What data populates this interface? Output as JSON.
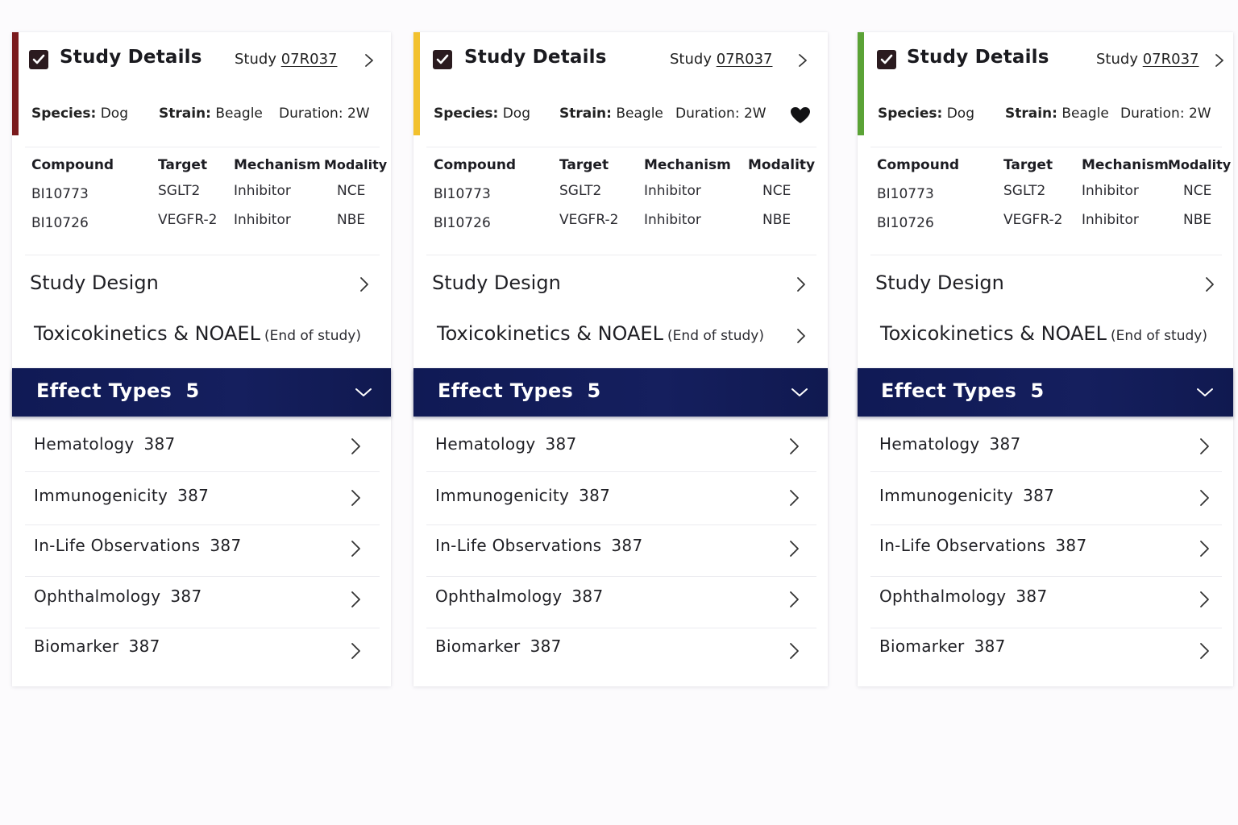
{
  "colors": {
    "accent_card_1": "#7a1a1d",
    "accent_card_2": "#f2c12e",
    "accent_card_3": "#5ba336",
    "effect_header": "#121c58",
    "checkbox": "#2b1b1f"
  },
  "icons": {
    "checkbox": "checked-checkbox-icon",
    "chevron": "chevron-right-icon",
    "collapse": "chevron-down-icon",
    "favorite": "heart-icon"
  },
  "cards": [
    {
      "study_details": {
        "title": "Study Details",
        "study_prefix": "Study",
        "study_id": "07R037",
        "species_label": "Species:",
        "species_value": "Dog",
        "strain_label": "Strain:",
        "strain_value": "Beagle",
        "duration_label": "Duration:",
        "duration_value": "2W"
      },
      "compound_table": {
        "headers": [
          "Compound",
          "Target",
          "Mechanism",
          "Modality"
        ],
        "rows": [
          [
            "BI10773",
            "SGLT2",
            "Inhibitor",
            "NCE"
          ],
          [
            "BI10726",
            "VEGFR-2",
            "Inhibitor",
            "NBE"
          ]
        ]
      },
      "study_design": "Study Design",
      "tox": {
        "title": "Toxicokinetics & NOAEL",
        "subtitle": "(End of study)"
      },
      "effect_types": {
        "title": "Effect Types",
        "count": "5",
        "items": [
          {
            "label": "Hematology",
            "count": "387"
          },
          {
            "label": "Immunogenicity",
            "count": "387"
          },
          {
            "label": "In-Life Observations",
            "count": "387"
          },
          {
            "label": "Ophthalmology",
            "count": "387"
          },
          {
            "label": "Biomarker",
            "count": "387"
          }
        ]
      }
    },
    {
      "study_details": {
        "title": "Study Details",
        "study_prefix": "Study",
        "study_id": "07R037",
        "species_label": "Species:",
        "species_value": "Dog",
        "strain_label": "Strain:",
        "strain_value": "Beagle",
        "duration_label": "Duration:",
        "duration_value": "2W"
      },
      "compound_table": {
        "headers": [
          "Compound",
          "Target",
          "Mechanism",
          "Modality"
        ],
        "rows": [
          [
            "BI10773",
            "SGLT2",
            "Inhibitor",
            "NCE"
          ],
          [
            "BI10726",
            "VEGFR-2",
            "Inhibitor",
            "NBE"
          ]
        ]
      },
      "study_design": "Study Design",
      "tox": {
        "title": "Toxicokinetics & NOAEL",
        "subtitle": "(End of study)"
      },
      "effect_types": {
        "title": "Effect Types",
        "count": "5",
        "items": [
          {
            "label": "Hematology",
            "count": "387"
          },
          {
            "label": "Immunogenicity",
            "count": "387"
          },
          {
            "label": "In-Life Observations",
            "count": "387"
          },
          {
            "label": "Ophthalmology",
            "count": "387"
          },
          {
            "label": "Biomarker",
            "count": "387"
          }
        ]
      }
    },
    {
      "study_details": {
        "title": "Study Details",
        "study_prefix": "Study",
        "study_id": "07R037",
        "species_label": "Species:",
        "species_value": "Dog",
        "strain_label": "Strain:",
        "strain_value": "Beagle",
        "duration_label": "Duration:",
        "duration_value": "2W"
      },
      "compound_table": {
        "headers": [
          "Compound",
          "Target",
          "Mechanism",
          "Modality"
        ],
        "rows": [
          [
            "BI10773",
            "SGLT2",
            "Inhibitor",
            "NCE"
          ],
          [
            "BI10726",
            "VEGFR-2",
            "Inhibitor",
            "NBE"
          ]
        ]
      },
      "study_design": "Study Design",
      "tox": {
        "title": "Toxicokinetics & NOAEL",
        "subtitle": "(End of study)"
      },
      "effect_types": {
        "title": "Effect Types",
        "count": "5",
        "items": [
          {
            "label": "Hematology",
            "count": "387"
          },
          {
            "label": "Immunogenicity",
            "count": "387"
          },
          {
            "label": "In-Life Observations",
            "count": "387"
          },
          {
            "label": "Ophthalmology",
            "count": "387"
          },
          {
            "label": "Biomarker",
            "count": "387"
          }
        ]
      }
    }
  ]
}
